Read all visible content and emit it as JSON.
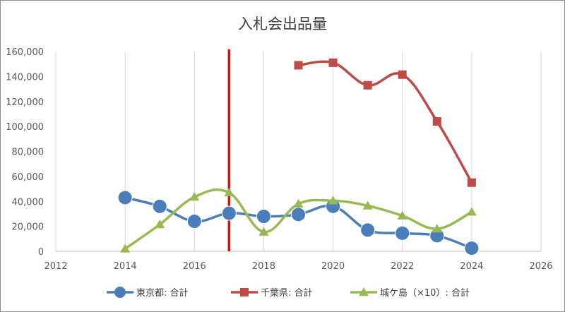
{
  "chart_data": {
    "type": "line",
    "title": "入札会出品量",
    "xlabel": "",
    "ylabel": "",
    "xlim": [
      2012,
      2026
    ],
    "ylim": [
      0,
      160000
    ],
    "x_ticks": [
      2012,
      2014,
      2016,
      2018,
      2020,
      2022,
      2024,
      2026
    ],
    "x_tick_labels": [
      "2012",
      "2014",
      "2016",
      "2018",
      "2020",
      "2022",
      "2024",
      "2026"
    ],
    "y_ticks": [
      0,
      20000,
      40000,
      60000,
      80000,
      100000,
      120000,
      140000,
      160000
    ],
    "y_tick_labels": [
      "0",
      "20,000",
      "40,000",
      "60,000",
      "80,000",
      "100,000",
      "120,000",
      "140,000",
      "160,000"
    ],
    "grid": "vertical",
    "legend_position": "bottom",
    "reference_line": {
      "x": 2017,
      "color": "#ff0000"
    },
    "series": [
      {
        "name": "東京都: 合計",
        "color": "#4a7ebb",
        "marker": "circle",
        "x": [
          2014,
          2015,
          2016,
          2017,
          2018,
          2019,
          2020,
          2021,
          2022,
          2023,
          2024
        ],
        "values": [
          43000,
          36000,
          24000,
          30500,
          28000,
          29500,
          36000,
          17000,
          14500,
          12500,
          2500
        ]
      },
      {
        "name": "千葉県: 合計",
        "color": "#be4b48",
        "marker": "square",
        "x": [
          2019,
          2020,
          2021,
          2022,
          2023,
          2024
        ],
        "values": [
          149000,
          151000,
          133000,
          141500,
          104000,
          55000
        ]
      },
      {
        "name": "城ケ島（×10）: 合計",
        "color": "#98b954",
        "marker": "triangle",
        "x": [
          2014,
          2015,
          2016,
          2017,
          2018,
          2019,
          2020,
          2021,
          2022,
          2023,
          2024
        ],
        "values": [
          2000,
          21500,
          43500,
          47000,
          15500,
          38000,
          40500,
          36500,
          28500,
          18000,
          31500
        ]
      }
    ]
  }
}
